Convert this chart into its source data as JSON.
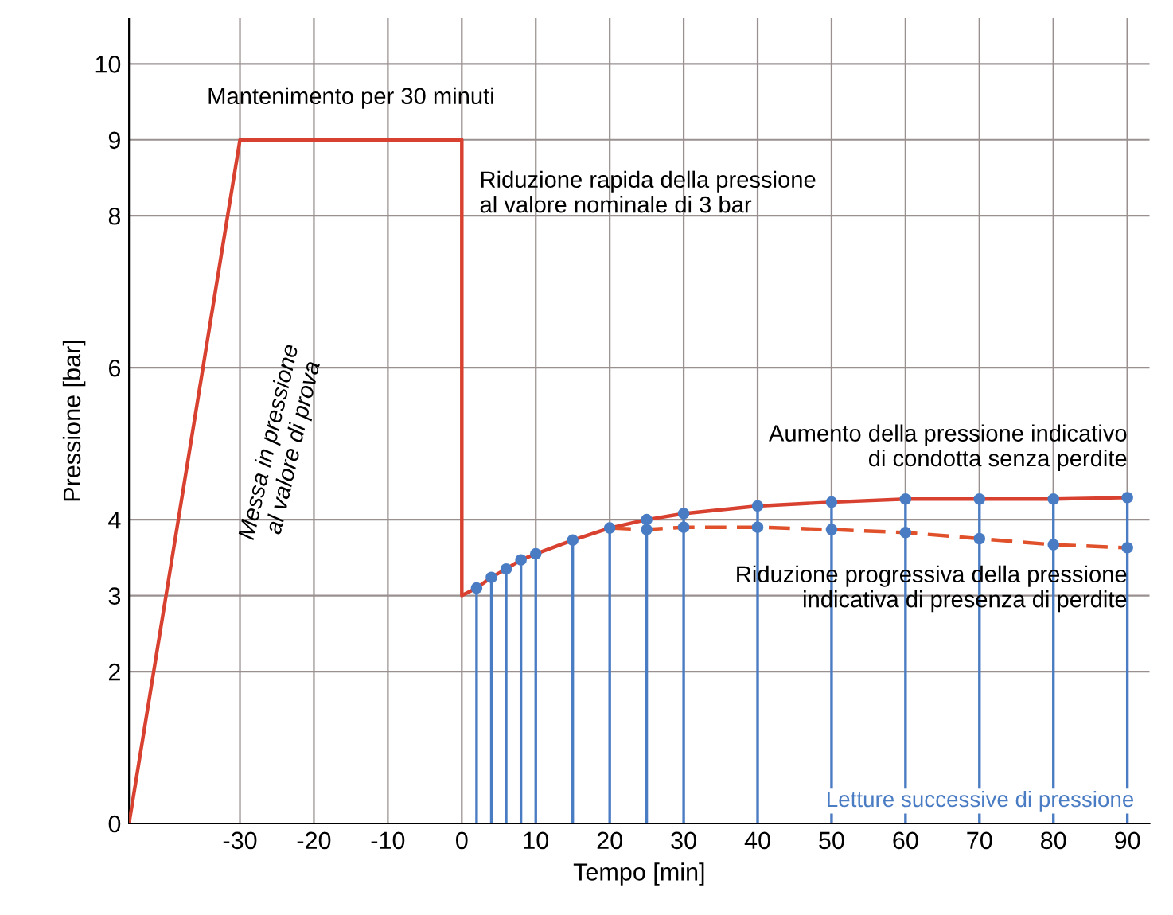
{
  "chart_data": {
    "type": "line",
    "xlabel": "Tempo [min]",
    "ylabel": "Pressione [bar]",
    "xlim": [
      -45,
      93
    ],
    "ylim": [
      0,
      10.6
    ],
    "xticks": [
      -30,
      -20,
      -10,
      0,
      10,
      20,
      30,
      40,
      50,
      60,
      70,
      80,
      90
    ],
    "yticks": [
      0,
      2,
      3,
      4,
      6,
      8,
      9,
      10
    ],
    "grid": true,
    "legend": false,
    "series": [
      {
        "color": "#d8402f",
        "line_style": "solid",
        "marker": "none",
        "x": [
          -45,
          -30,
          0,
          0,
          2,
          4,
          6,
          8,
          10,
          15,
          20,
          25,
          30,
          40,
          50,
          60,
          70,
          80,
          90
        ],
        "values": [
          0,
          9,
          9,
          3,
          3.1,
          3.24,
          3.35,
          3.47,
          3.55,
          3.73,
          3.89,
          4.0,
          4.08,
          4.18,
          4.23,
          4.27,
          4.27,
          4.27,
          4.29
        ]
      },
      {
        "color": "#e0502a",
        "line_style": "dashed",
        "marker": "none",
        "x": [
          20,
          25,
          30,
          40,
          50,
          60,
          70,
          80,
          90
        ],
        "values": [
          3.89,
          3.87,
          3.9,
          3.9,
          3.87,
          3.83,
          3.75,
          3.67,
          3.63
        ]
      },
      {
        "type": "lollipop",
        "name": "Letture successive di pressione",
        "color": "#4a7cc4",
        "marker": "circle",
        "x": [
          2,
          4,
          6,
          8,
          10,
          15,
          20,
          25,
          30,
          40,
          50,
          60,
          70,
          80,
          90
        ],
        "values": [
          3.1,
          3.24,
          3.35,
          3.47,
          3.55,
          3.73,
          3.89,
          4.0,
          4.08,
          4.18,
          4.23,
          4.27,
          4.27,
          4.27,
          4.29
        ]
      },
      {
        "type": "scatter",
        "color": "#4a7cc4",
        "marker": "circle",
        "x": [
          25,
          30,
          40,
          50,
          60,
          70,
          80,
          90
        ],
        "values": [
          3.87,
          3.9,
          3.9,
          3.87,
          3.83,
          3.75,
          3.67,
          3.63
        ]
      }
    ],
    "annotations": [
      {
        "text": "Mantenimento per 30 minuti",
        "x": -15,
        "y": 9
      },
      {
        "text": "Riduzione rapida della pressione\nal valore nominale di 3 bar",
        "x": 0,
        "y": 9
      },
      "Messa in pressione\nal valore di prova",
      {
        "text": "Aumento della pressione indicativo\ndi condotta senza perdite",
        "x": 90,
        "y": 4.29
      },
      {
        "text": "Riduzione progressiva della pressione\nindicativa di presenza di perdite",
        "x": 90,
        "y": 3.63
      }
    ]
  }
}
